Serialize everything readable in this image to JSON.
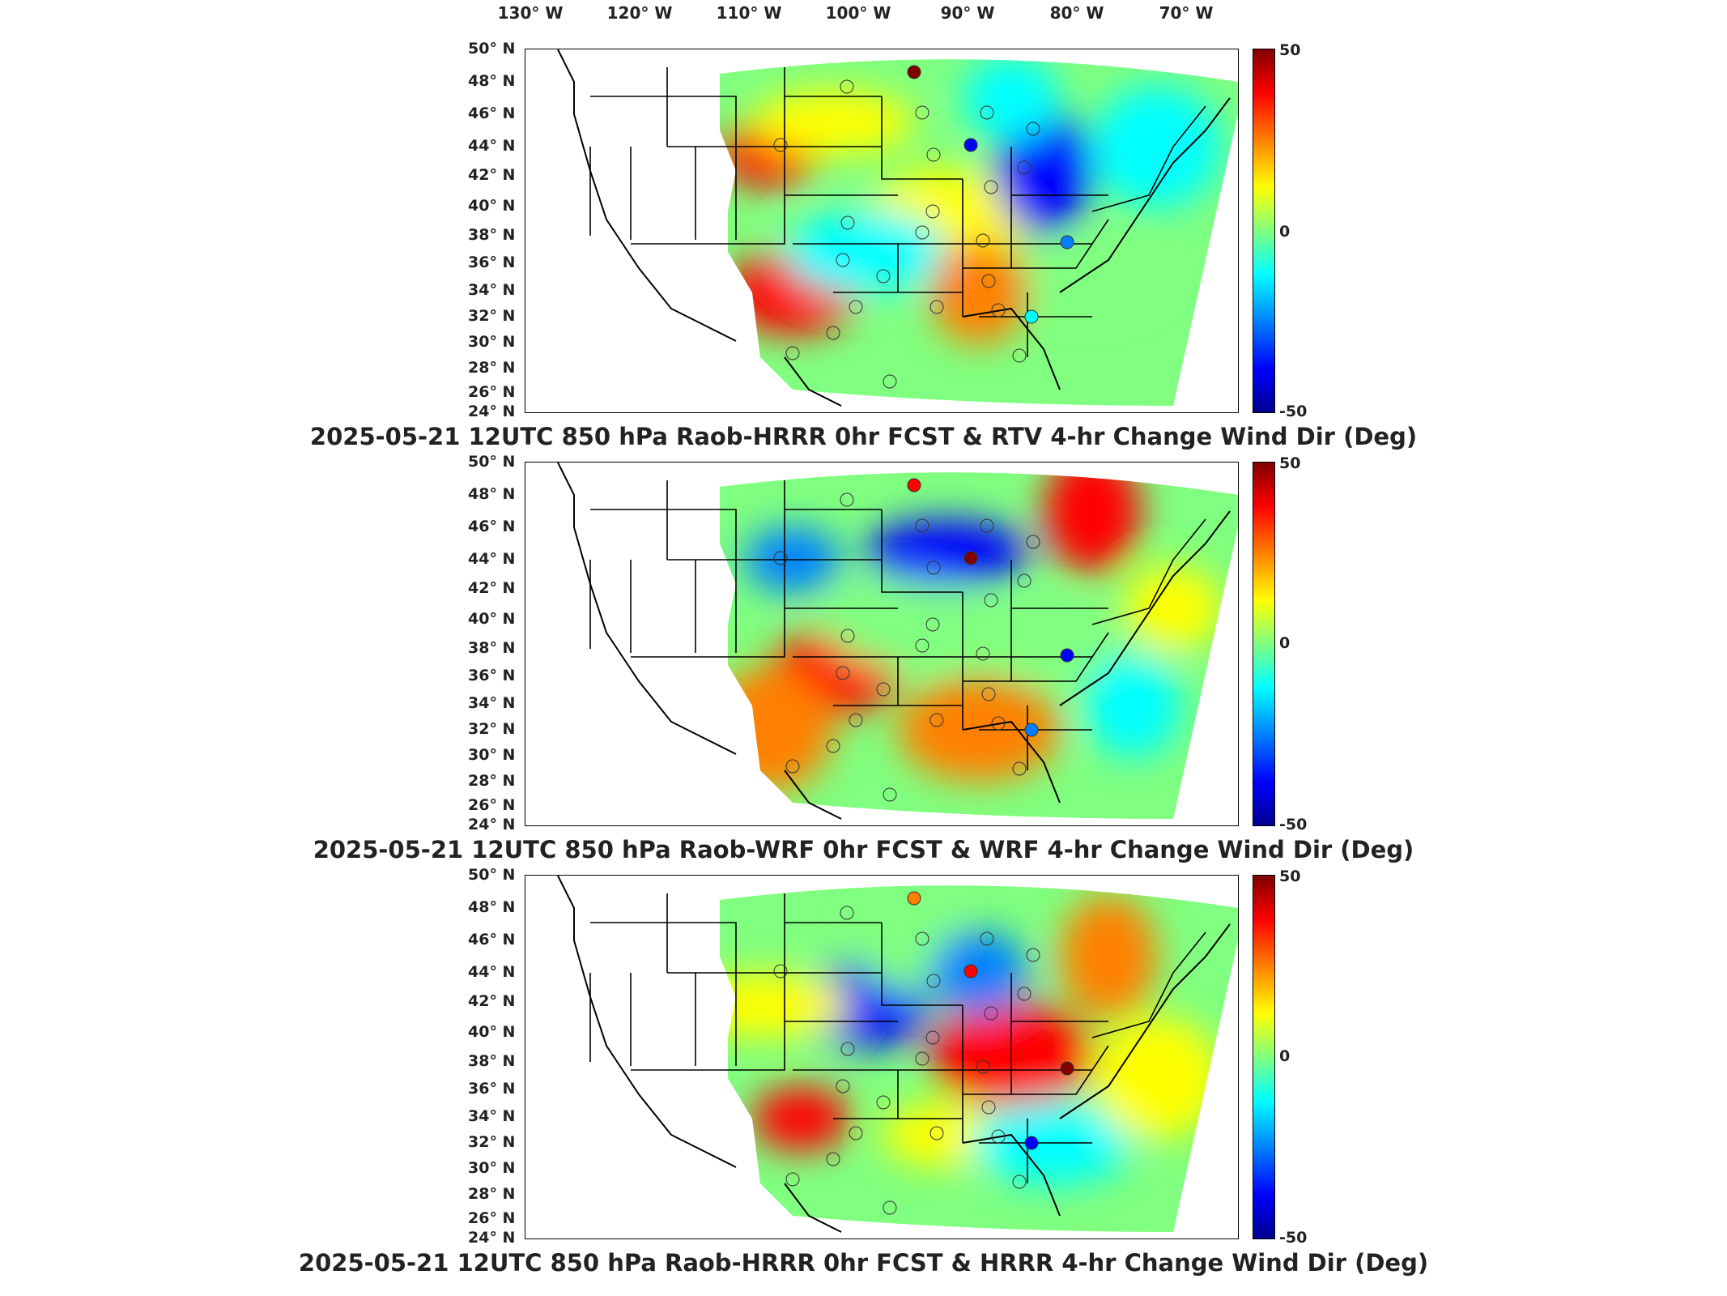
{
  "longitude_labels": [
    "130° W",
    "120° W",
    "110° W",
    "100° W",
    "90° W",
    "80° W",
    "70° W"
  ],
  "latitude_labels": [
    "50° N",
    "48° N",
    "46° N",
    "44° N",
    "42° N",
    "40° N",
    "38° N",
    "36° N",
    "34° N",
    "32° N",
    "30° N",
    "28° N",
    "26° N",
    "24° N"
  ],
  "colorbar": {
    "max_label": "50",
    "mid_label": "0",
    "min_label": "-50"
  },
  "panels": [
    {
      "title": "2025-05-21 12UTC 850 hPa Raob-HRRR 0hr FCST & RTV 4-hr Change Wind Dir (Deg)"
    },
    {
      "title": "2025-05-21 12UTC 850 hPa Raob-WRF 0hr FCST & WRF 4-hr Change Wind Dir (Deg)"
    },
    {
      "title": "2025-05-21 12UTC 850 hPa Raob-HRRR 0hr FCST & HRRR 4-hr Change Wind Dir (Deg)"
    }
  ],
  "colors": {
    "max": "#800000",
    "mid": "#80ff80",
    "min": "#00008f"
  }
}
